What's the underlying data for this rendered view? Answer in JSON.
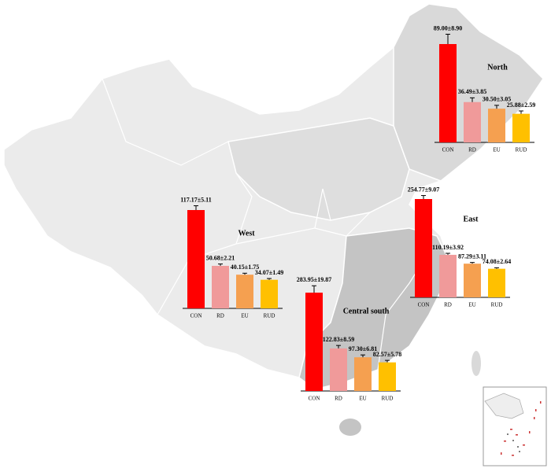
{
  "chart_data": [
    {
      "type": "bar",
      "title": "North",
      "categories": [
        "CON",
        "RD",
        "EU",
        "RUD"
      ],
      "values": [
        89.0,
        36.49,
        30.5,
        25.88
      ],
      "errors": [
        8.9,
        3.85,
        3.05,
        2.59
      ],
      "value_labels": [
        "89.00±8.90",
        "36.49±3.85",
        "30.50±3.05",
        "25.88±2.59"
      ],
      "colors": [
        "#ff0000",
        "#f09a9a",
        "#f5a050",
        "#ffc000"
      ]
    },
    {
      "type": "bar",
      "title": "West",
      "categories": [
        "CON",
        "RD",
        "EU",
        "RUD"
      ],
      "values": [
        117.17,
        50.68,
        40.15,
        34.07
      ],
      "errors": [
        5.11,
        2.21,
        1.75,
        1.49
      ],
      "value_labels": [
        "117.17±5.11",
        "50.68±2.21",
        "40.15±1.75",
        "34.07±1.49"
      ],
      "colors": [
        "#ff0000",
        "#f09a9a",
        "#f5a050",
        "#ffc000"
      ]
    },
    {
      "type": "bar",
      "title": "East",
      "categories": [
        "CON",
        "RD",
        "EU",
        "RUD"
      ],
      "values": [
        254.77,
        110.19,
        87.29,
        74.08
      ],
      "errors": [
        9.07,
        3.92,
        3.11,
        2.64
      ],
      "value_labels": [
        "254.77±9.07",
        "110.19±3.92",
        "87.29±3.11",
        "74.08±2.64"
      ],
      "colors": [
        "#ff0000",
        "#f09a9a",
        "#f5a050",
        "#ffc000"
      ]
    },
    {
      "type": "bar",
      "title": "Central south",
      "categories": [
        "CON",
        "RD",
        "EU",
        "RUD"
      ],
      "values": [
        283.95,
        122.83,
        97.3,
        82.57
      ],
      "errors": [
        19.87,
        8.59,
        6.81,
        5.78
      ],
      "value_labels": [
        "283.95±19.87",
        "122.83±8.59",
        "97.30±6.81",
        "82.57±5.78"
      ],
      "colors": [
        "#ff0000",
        "#f09a9a",
        "#f5a050",
        "#ffc000"
      ]
    }
  ]
}
